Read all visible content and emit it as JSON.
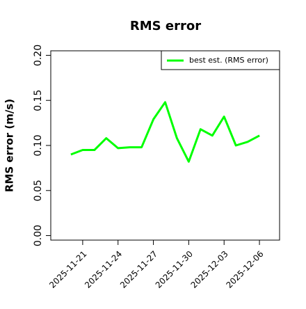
{
  "chart_data": {
    "type": "line",
    "title": "RMS error",
    "ylabel": "RMS error (m/s)",
    "x": [
      "2025-11-20",
      "2025-11-21",
      "2025-11-22",
      "2025-11-23",
      "2025-11-24",
      "2025-11-25",
      "2025-11-26",
      "2025-11-27",
      "2025-11-28",
      "2025-11-29",
      "2025-11-30",
      "2025-12-01",
      "2025-12-02",
      "2025-12-03",
      "2025-12-04",
      "2025-12-05",
      "2025-12-06"
    ],
    "series": [
      {
        "name": "best est. (RMS error)",
        "color": "#00ff00",
        "values": [
          0.09,
          0.095,
          0.095,
          0.108,
          0.097,
          0.098,
          0.098,
          0.129,
          0.148,
          0.108,
          0.082,
          0.118,
          0.111,
          0.132,
          0.1,
          0.104,
          0.111
        ]
      }
    ],
    "xlim": [
      "2025-11-18T07:00Z",
      "2025-12-07T17:00Z"
    ],
    "xticks": [
      "2025-11-21",
      "2025-11-24",
      "2025-11-27",
      "2025-11-30",
      "2025-12-03",
      "2025-12-06"
    ],
    "xtick_label_colors": [
      "#000000",
      "#000000",
      "#228b22",
      "#000000",
      "#000000",
      "#000000"
    ],
    "ylim": [
      -0.005,
      0.205
    ],
    "yticks": [
      {
        "value": 0,
        "label": "0.00"
      },
      {
        "value": 0.05,
        "label": "0.05"
      },
      {
        "value": 0.1,
        "label": "0.10"
      },
      {
        "value": 0.15,
        "label": "0.15"
      },
      {
        "value": 0.2,
        "label": "0.20"
      }
    ],
    "legend": "top-right"
  }
}
